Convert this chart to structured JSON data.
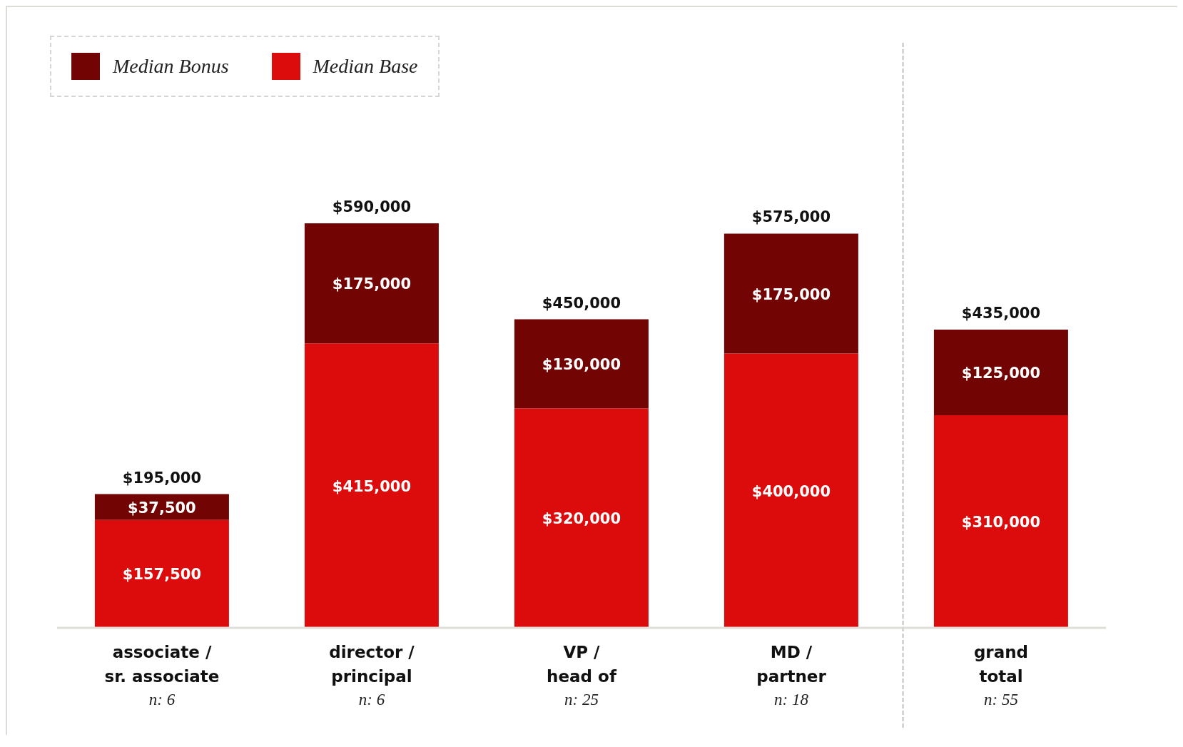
{
  "chart_data": {
    "type": "bar",
    "stacked": true,
    "categories": [
      "associate / sr. associate",
      "director / principal",
      "VP / head of",
      "MD / partner",
      "grand total"
    ],
    "series": [
      {
        "name": "Median Base",
        "color": "#dc0c0c",
        "values": [
          157500,
          415000,
          320000,
          400000,
          310000
        ],
        "value_labels": [
          "$157,500",
          "$415,000",
          "$320,000",
          "$400,000",
          "$310,000"
        ]
      },
      {
        "name": "Median Bonus",
        "color": "#730404",
        "values": [
          37500,
          175000,
          130000,
          175000,
          125000
        ],
        "value_labels": [
          "$37,500",
          "$175,000",
          "$130,000",
          "$175,000",
          "$125,000"
        ]
      }
    ],
    "totals": [
      "$195,000",
      "$590,000",
      "$450,000",
      "$575,000",
      "$435,000"
    ],
    "annotations": [
      "n: 6",
      "n: 6",
      "n: 25",
      "n: 18",
      "n: 55"
    ],
    "legend": "top left",
    "grid": false
  }
}
